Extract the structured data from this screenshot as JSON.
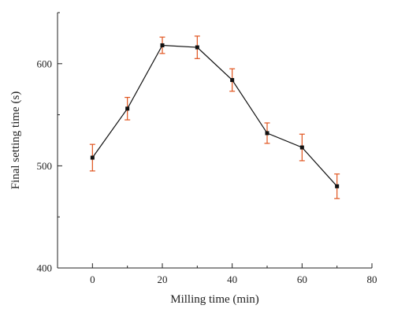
{
  "chart_data": {
    "type": "line",
    "title": "",
    "xlabel": "Milling time (min)",
    "ylabel": "Final setting time (s)",
    "xlim": [
      -10,
      80
    ],
    "ylim": [
      400,
      650
    ],
    "xticks": [
      0,
      20,
      40,
      60,
      80
    ],
    "yticks": [
      400,
      500,
      600
    ],
    "grid": false,
    "legend": "none",
    "series": [
      {
        "x": [
          0,
          10,
          20,
          30,
          40,
          50,
          60,
          70
        ],
        "y": [
          508,
          556,
          618,
          616,
          584,
          532,
          518,
          480
        ],
        "error": [
          13,
          11,
          8,
          11,
          11,
          10,
          13,
          12
        ],
        "line_color": "#111111",
        "marker_color": "#111111",
        "error_color": "#e0531d"
      }
    ]
  }
}
